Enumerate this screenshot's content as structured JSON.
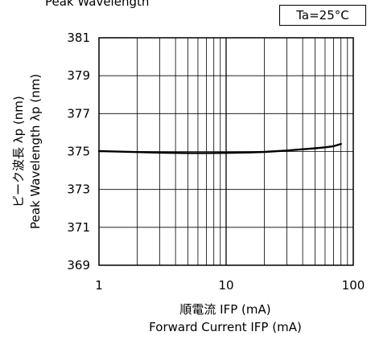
{
  "chart_data": {
    "type": "line",
    "title": "Peak Wavelength",
    "condition": "Ta=25°C",
    "xlabel_jp": "順電流 IFP (mA)",
    "xlabel_en": "Forward Current IFP (mA)",
    "ylabel_jp": "ピーク波長 λp (nm)",
    "ylabel_en": "Peak Wavelength λp (nm)",
    "x_scale": "log",
    "xlim": [
      1,
      100
    ],
    "ylim": [
      369,
      381
    ],
    "x_ticks": [
      1,
      10,
      100
    ],
    "x_tick_labels": [
      "1",
      "10",
      "100"
    ],
    "y_ticks": [
      369,
      371,
      373,
      375,
      377,
      379,
      381
    ],
    "y_tick_labels": [
      "369",
      "371",
      "373",
      "375",
      "377",
      "379",
      "381"
    ],
    "grid": true,
    "series": [
      {
        "x": [
          1,
          2,
          3,
          5,
          7,
          10,
          15,
          20,
          30,
          40,
          50,
          60,
          70,
          80
        ],
        "y": [
          375.02,
          374.97,
          374.94,
          374.92,
          374.92,
          374.93,
          374.95,
          374.98,
          375.05,
          375.12,
          375.17,
          375.22,
          375.28,
          375.4
        ]
      }
    ]
  }
}
